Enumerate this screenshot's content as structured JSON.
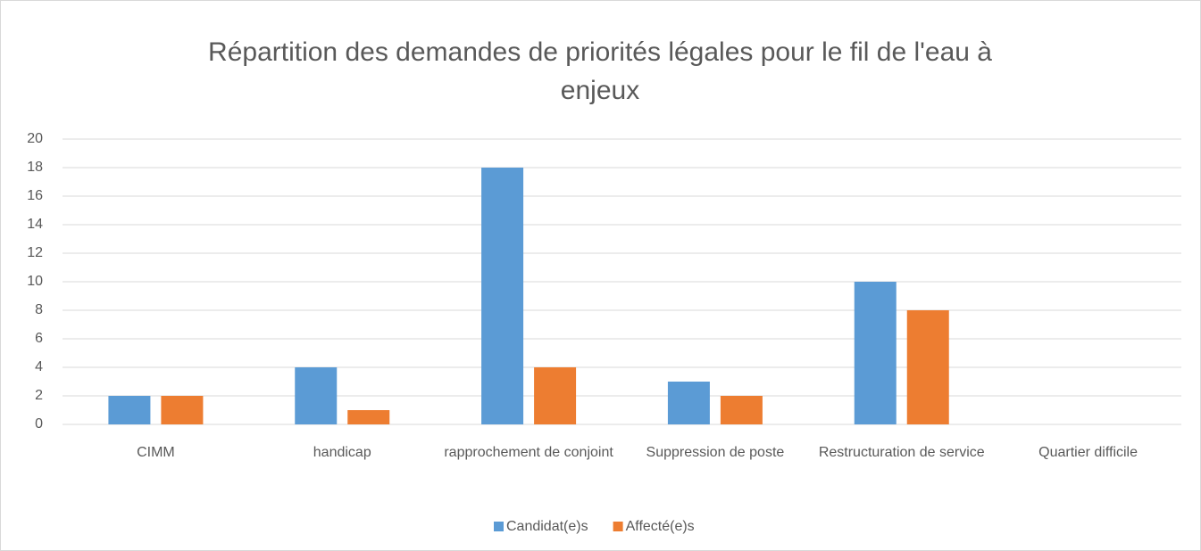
{
  "chart_data": {
    "type": "bar",
    "title": "Répartition des demandes de priorités légales pour le fil de l'eau à enjeux",
    "categories": [
      "CIMM",
      "handicap",
      "rapprochement de conjoint",
      "Suppression de poste",
      "Restructuration de service",
      "Quartier difficile"
    ],
    "series": [
      {
        "name": "Candidat(e)s",
        "color": "#5b9bd5",
        "values": [
          2,
          4,
          18,
          3,
          10,
          0
        ]
      },
      {
        "name": "Affecté(e)s",
        "color": "#ed7d31",
        "values": [
          2,
          1,
          4,
          2,
          8,
          0
        ]
      }
    ],
    "ylim": [
      0,
      20
    ],
    "yticks": [
      0,
      2,
      4,
      6,
      8,
      10,
      12,
      14,
      16,
      18,
      20
    ],
    "grid": true,
    "legend": "bottom"
  }
}
